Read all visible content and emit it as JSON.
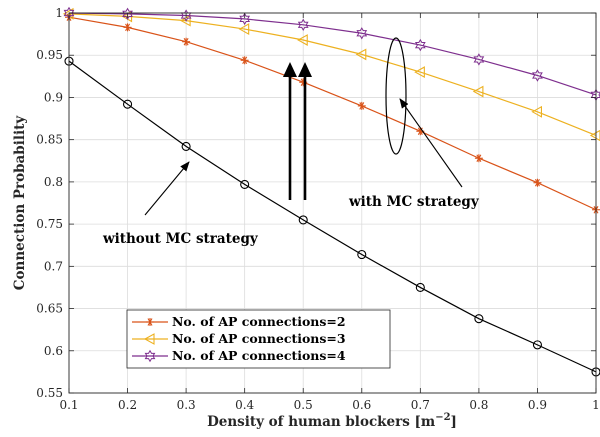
{
  "chart_data": {
    "type": "line",
    "xlabel": "Density of human blockers [m",
    "xlabel_sup": "−2",
    "xlabel_close": "]",
    "ylabel": "Connection Probability",
    "xlim": [
      0.1,
      1
    ],
    "ylim": [
      0.55,
      1
    ],
    "xticks": [
      0.1,
      0.2,
      0.3,
      0.4,
      0.5,
      0.6,
      0.7,
      0.8,
      0.9,
      1
    ],
    "xtick_labels": [
      "0.1",
      "0.2",
      "0.3",
      "0.4",
      "0.5",
      "0.6",
      "0.7",
      "0.8",
      "0.9",
      "1"
    ],
    "yticks": [
      0.55,
      0.6,
      0.65,
      0.7,
      0.75,
      0.8,
      0.85,
      0.9,
      0.95,
      1
    ],
    "ytick_labels": [
      "0.55",
      "0.6",
      "0.65",
      "0.7",
      "0.75",
      "0.8",
      "0.85",
      "0.9",
      "0.95",
      "1"
    ],
    "grid": true,
    "legend_position": "bottom-left",
    "x": [
      0.1,
      0.2,
      0.3,
      0.4,
      0.5,
      0.6,
      0.7,
      0.8,
      0.9,
      1.0
    ],
    "series": [
      {
        "id": "s1",
        "values": [
          0.943,
          0.892,
          0.842,
          0.797,
          0.755,
          0.714,
          0.675,
          0.638,
          0.607,
          0.575
        ],
        "color": "#000000",
        "marker": "circle"
      },
      {
        "id": "s2",
        "name": "No. of AP connections=2",
        "values": [
          0.995,
          0.983,
          0.966,
          0.944,
          0.918,
          0.89,
          0.86,
          0.828,
          0.799,
          0.767
        ],
        "color": "#D95319",
        "marker": "asterisk"
      },
      {
        "id": "s3",
        "name": "No. of AP connections=3",
        "values": [
          0.999,
          0.996,
          0.991,
          0.981,
          0.968,
          0.951,
          0.93,
          0.907,
          0.883,
          0.855
        ],
        "color": "#EDB120",
        "marker": "triangle-left"
      },
      {
        "id": "s4",
        "name": "No. of AP connections=4",
        "values": [
          1.0,
          0.999,
          0.997,
          0.993,
          0.986,
          0.976,
          0.962,
          0.945,
          0.926,
          0.903
        ],
        "color": "#7E2F8E",
        "marker": "hexagram"
      }
    ],
    "annotations": [
      {
        "id": "with-mc",
        "text": "with MC strategy"
      },
      {
        "id": "without-mc",
        "text": "without MC strategy"
      }
    ]
  }
}
